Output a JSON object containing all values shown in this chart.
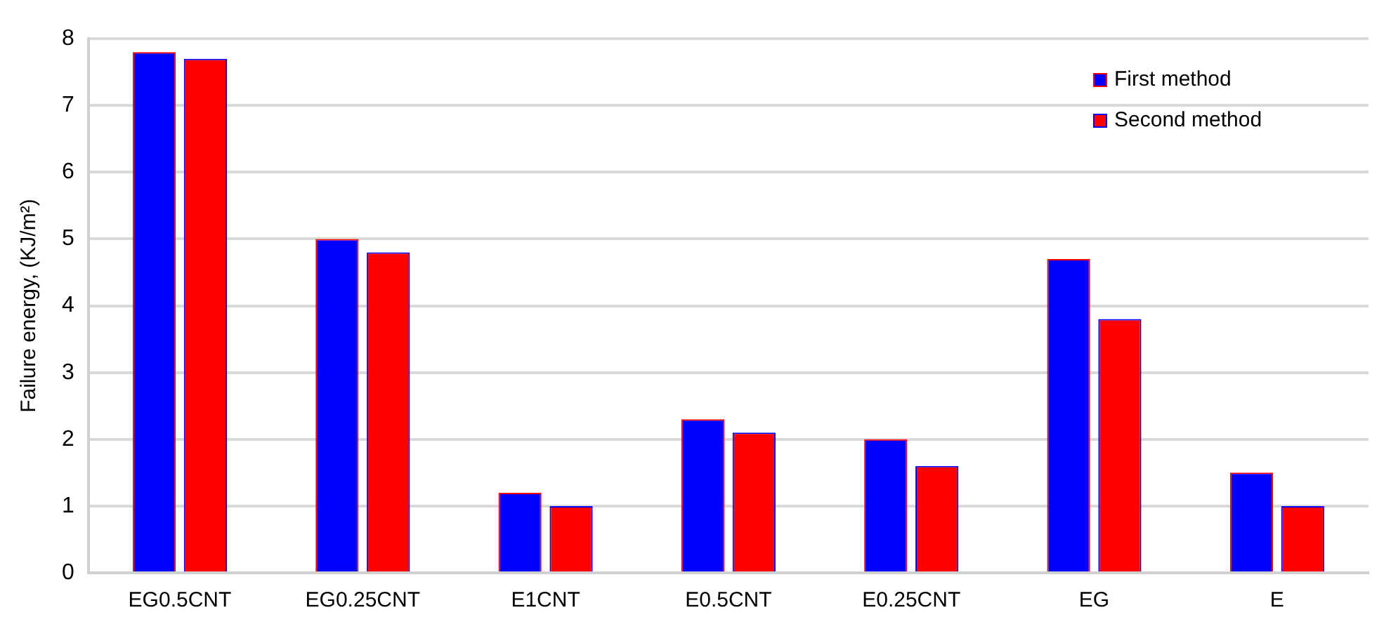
{
  "chart_data": {
    "type": "bar",
    "ylabel": "Failure energy, (KJ/m²)",
    "categories": [
      "EG0.5CNT",
      "EG0.25CNT",
      "E1CNT",
      "E0.5CNT",
      "E0.25CNT",
      "EG",
      "E"
    ],
    "series": [
      {
        "name": "First method",
        "color": "#0000ff",
        "values": [
          7.8,
          5.0,
          1.2,
          2.3,
          2.0,
          4.7,
          1.5
        ]
      },
      {
        "name": "Second method",
        "color": "#ff0000",
        "values": [
          7.7,
          4.8,
          1.0,
          2.1,
          1.6,
          3.8,
          1.0
        ]
      }
    ],
    "ylim": [
      0,
      8
    ],
    "yticks": [
      0,
      1,
      2,
      3,
      4,
      5,
      6,
      7,
      8
    ],
    "grid": "y",
    "legend": "top right"
  }
}
